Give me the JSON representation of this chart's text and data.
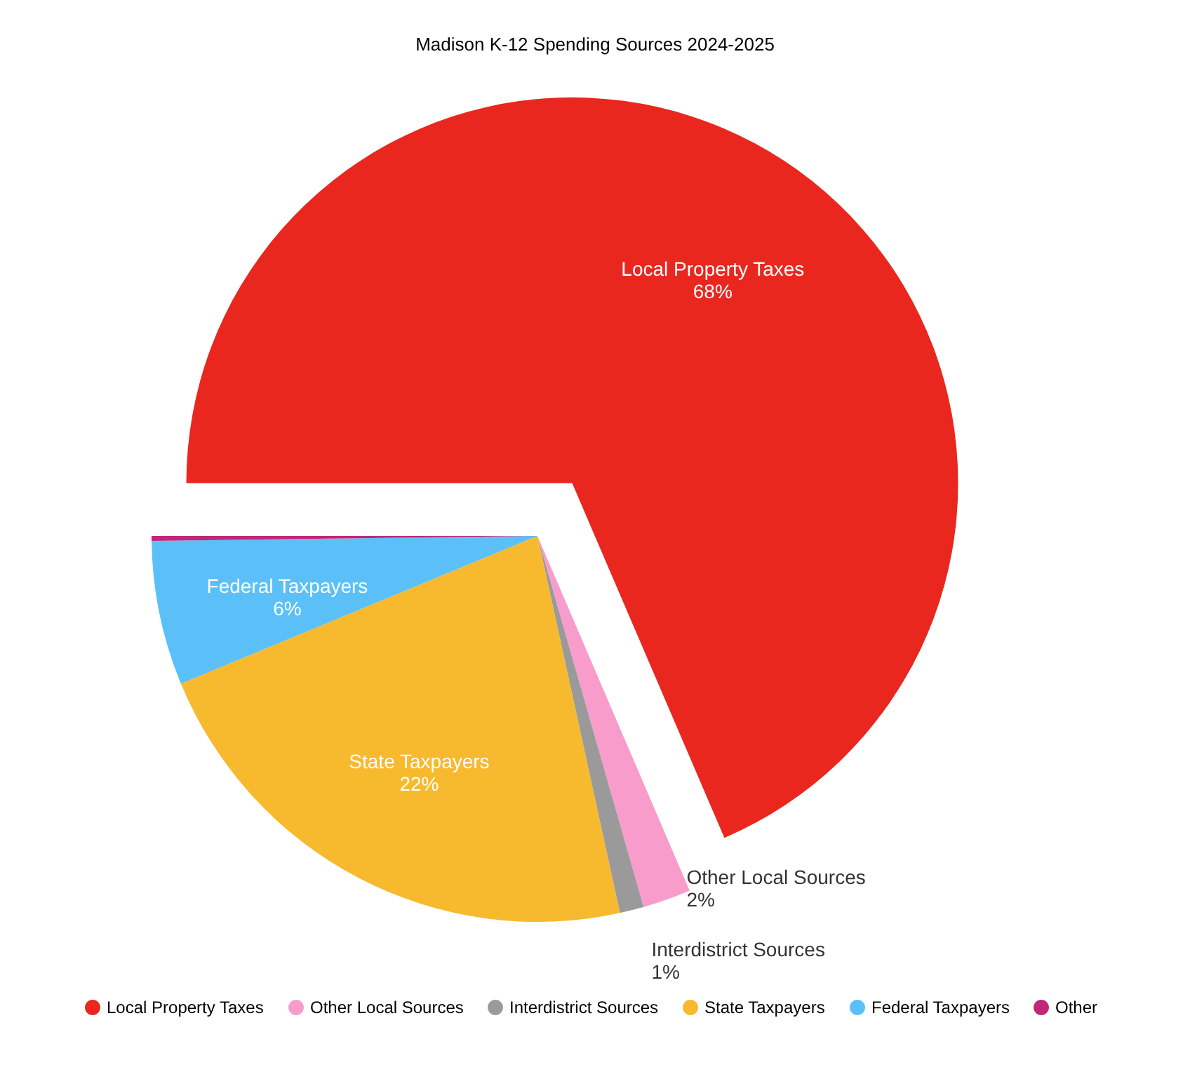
{
  "chart_data": {
    "type": "pie",
    "title": "Madison K-12 Spending Sources 2024-2025",
    "categories": [
      "Local Property Taxes",
      "Other Local Sources",
      "Interdistrict Sources",
      "State Taxpayers",
      "Federal Taxpayers",
      "Other"
    ],
    "values": [
      68,
      2,
      1,
      22,
      6,
      0.2
    ],
    "value_labels": [
      "68%",
      "2%",
      "1%",
      "22%",
      "6%",
      null
    ],
    "colors": [
      "#e9271f",
      "#f89ccc",
      "#9a9a9a",
      "#f7b92d",
      "#5bc0f8",
      "#c0267a"
    ],
    "legend": "bottom"
  }
}
